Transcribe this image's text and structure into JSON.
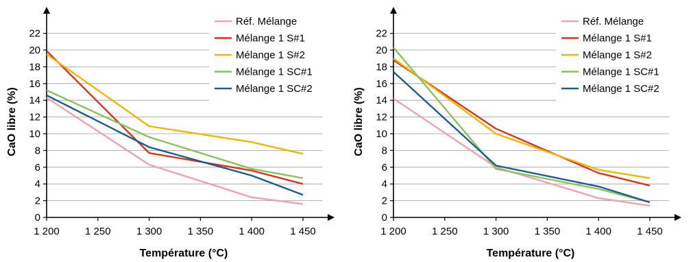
{
  "chart_data": [
    {
      "type": "line",
      "xlabel": "Température (°C)",
      "ylabel": "CaO libre (%)",
      "x": [
        1200,
        1300,
        1400,
        1450
      ],
      "xticks": [
        "1 200",
        "1 250",
        "1 300",
        "1 350",
        "1 400",
        "1 450"
      ],
      "xtick_values": [
        1200,
        1250,
        1300,
        1350,
        1400,
        1450
      ],
      "xlim": [
        1200,
        1460
      ],
      "yticks": [
        "0",
        "2",
        "4",
        "6",
        "8",
        "10",
        "12",
        "14",
        "16",
        "18",
        "20",
        "22"
      ],
      "ylim": [
        0,
        23
      ],
      "grid": true,
      "legend": "top-right",
      "series": [
        {
          "name": "Réf. Mélange",
          "color": "#f0a0b4",
          "values": [
            14.3,
            6.3,
            2.4,
            1.6
          ]
        },
        {
          "name": "Mélange 1 S#1",
          "color": "#d9351e",
          "values": [
            19.9,
            7.7,
            5.6,
            4.0
          ]
        },
        {
          "name": "Mélange 1 S#2",
          "color": "#f5b400",
          "values": [
            19.5,
            10.9,
            9.0,
            7.6
          ]
        },
        {
          "name": "Mélange 1 SC#1",
          "color": "#8cc25a",
          "values": [
            15.2,
            9.6,
            5.8,
            4.7
          ]
        },
        {
          "name": "Mélange 1 SC#2",
          "color": "#1a5e8c",
          "values": [
            14.6,
            8.4,
            5.0,
            2.7
          ]
        }
      ]
    },
    {
      "type": "line",
      "xlabel": "Température (°C)",
      "ylabel": "CaO libre (%)",
      "x": [
        1200,
        1300,
        1400,
        1450
      ],
      "xticks": [
        "1 200",
        "1 250",
        "1 300",
        "1 350",
        "1 400",
        "1 450"
      ],
      "xtick_values": [
        1200,
        1250,
        1300,
        1350,
        1400,
        1450
      ],
      "xlim": [
        1200,
        1460
      ],
      "yticks": [
        "0",
        "2",
        "4",
        "6",
        "8",
        "10",
        "12",
        "14",
        "16",
        "18",
        "20",
        "22"
      ],
      "ylim": [
        0,
        23
      ],
      "grid": true,
      "legend": "top-right",
      "series": [
        {
          "name": "Réf. Mélange",
          "color": "#f0a0b4",
          "values": [
            14.2,
            6.0,
            2.3,
            1.4
          ]
        },
        {
          "name": "Mélange 1 S#1",
          "color": "#d9351e",
          "values": [
            18.8,
            10.6,
            5.3,
            3.8
          ]
        },
        {
          "name": "Mélange 1 S#2",
          "color": "#f5b400",
          "values": [
            19.0,
            10.0,
            5.7,
            4.7
          ]
        },
        {
          "name": "Mélange 1 SC#1",
          "color": "#8cc25a",
          "values": [
            20.3,
            5.8,
            3.4,
            1.8
          ]
        },
        {
          "name": "Mélange 1 SC#2",
          "color": "#1a5e8c",
          "values": [
            17.4,
            6.2,
            3.7,
            1.8
          ]
        }
      ]
    }
  ]
}
